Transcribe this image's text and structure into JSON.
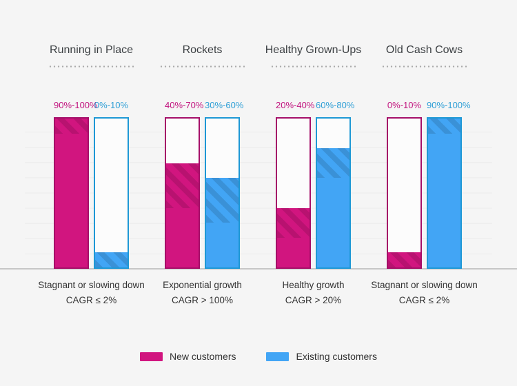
{
  "colors": {
    "background": "#f5f5f5",
    "new": "#d1157f",
    "new_border": "#a50f68",
    "new_label": "#c2157f",
    "existing": "#42a5f5",
    "existing_border": "#1e98d5",
    "existing_label": "#2f9fd6",
    "gridline": "#ebebeb",
    "baseline": "#c7c7c7",
    "heading_text": "#3c4043",
    "body_text": "#333333",
    "dot": "#aaaaaa",
    "bar_empty_fill": "#fcfcfc"
  },
  "chart_data": {
    "type": "bar",
    "ylim": [
      0,
      100
    ],
    "grid": true,
    "legend_position": "bottom",
    "series_names": [
      "New customers",
      "Existing customers"
    ],
    "groups": [
      {
        "title": "Running in Place",
        "new": {
          "low": 90,
          "high": 100,
          "label": "90%-100%"
        },
        "existing": {
          "low": 0,
          "high": 10,
          "label": "0%-10%"
        },
        "footer_line1": "Stagnant or slowing down",
        "footer_line2": "CAGR ≤ 2%"
      },
      {
        "title": "Rockets",
        "new": {
          "low": 40,
          "high": 70,
          "label": "40%-70%"
        },
        "existing": {
          "low": 30,
          "high": 60,
          "label": "30%-60%"
        },
        "footer_line1": "Exponential growth",
        "footer_line2": "CAGR > 100%"
      },
      {
        "title": "Healthy Grown-Ups",
        "new": {
          "low": 20,
          "high": 40,
          "label": "20%-40%"
        },
        "existing": {
          "low": 60,
          "high": 80,
          "label": "60%-80%"
        },
        "footer_line1": "Healthy growth",
        "footer_line2": "CAGR > 20%"
      },
      {
        "title": "Old Cash Cows",
        "new": {
          "low": 0,
          "high": 10,
          "label": "0%-10%"
        },
        "existing": {
          "low": 90,
          "high": 100,
          "label": "90%-100%"
        },
        "footer_line1": "Stagnant or slowing down",
        "footer_line2": "CAGR ≤ 2%"
      }
    ]
  },
  "legend": {
    "items": [
      {
        "label": "New customers",
        "color": "#d1157f"
      },
      {
        "label": "Existing customers",
        "color": "#42a5f5"
      }
    ]
  }
}
